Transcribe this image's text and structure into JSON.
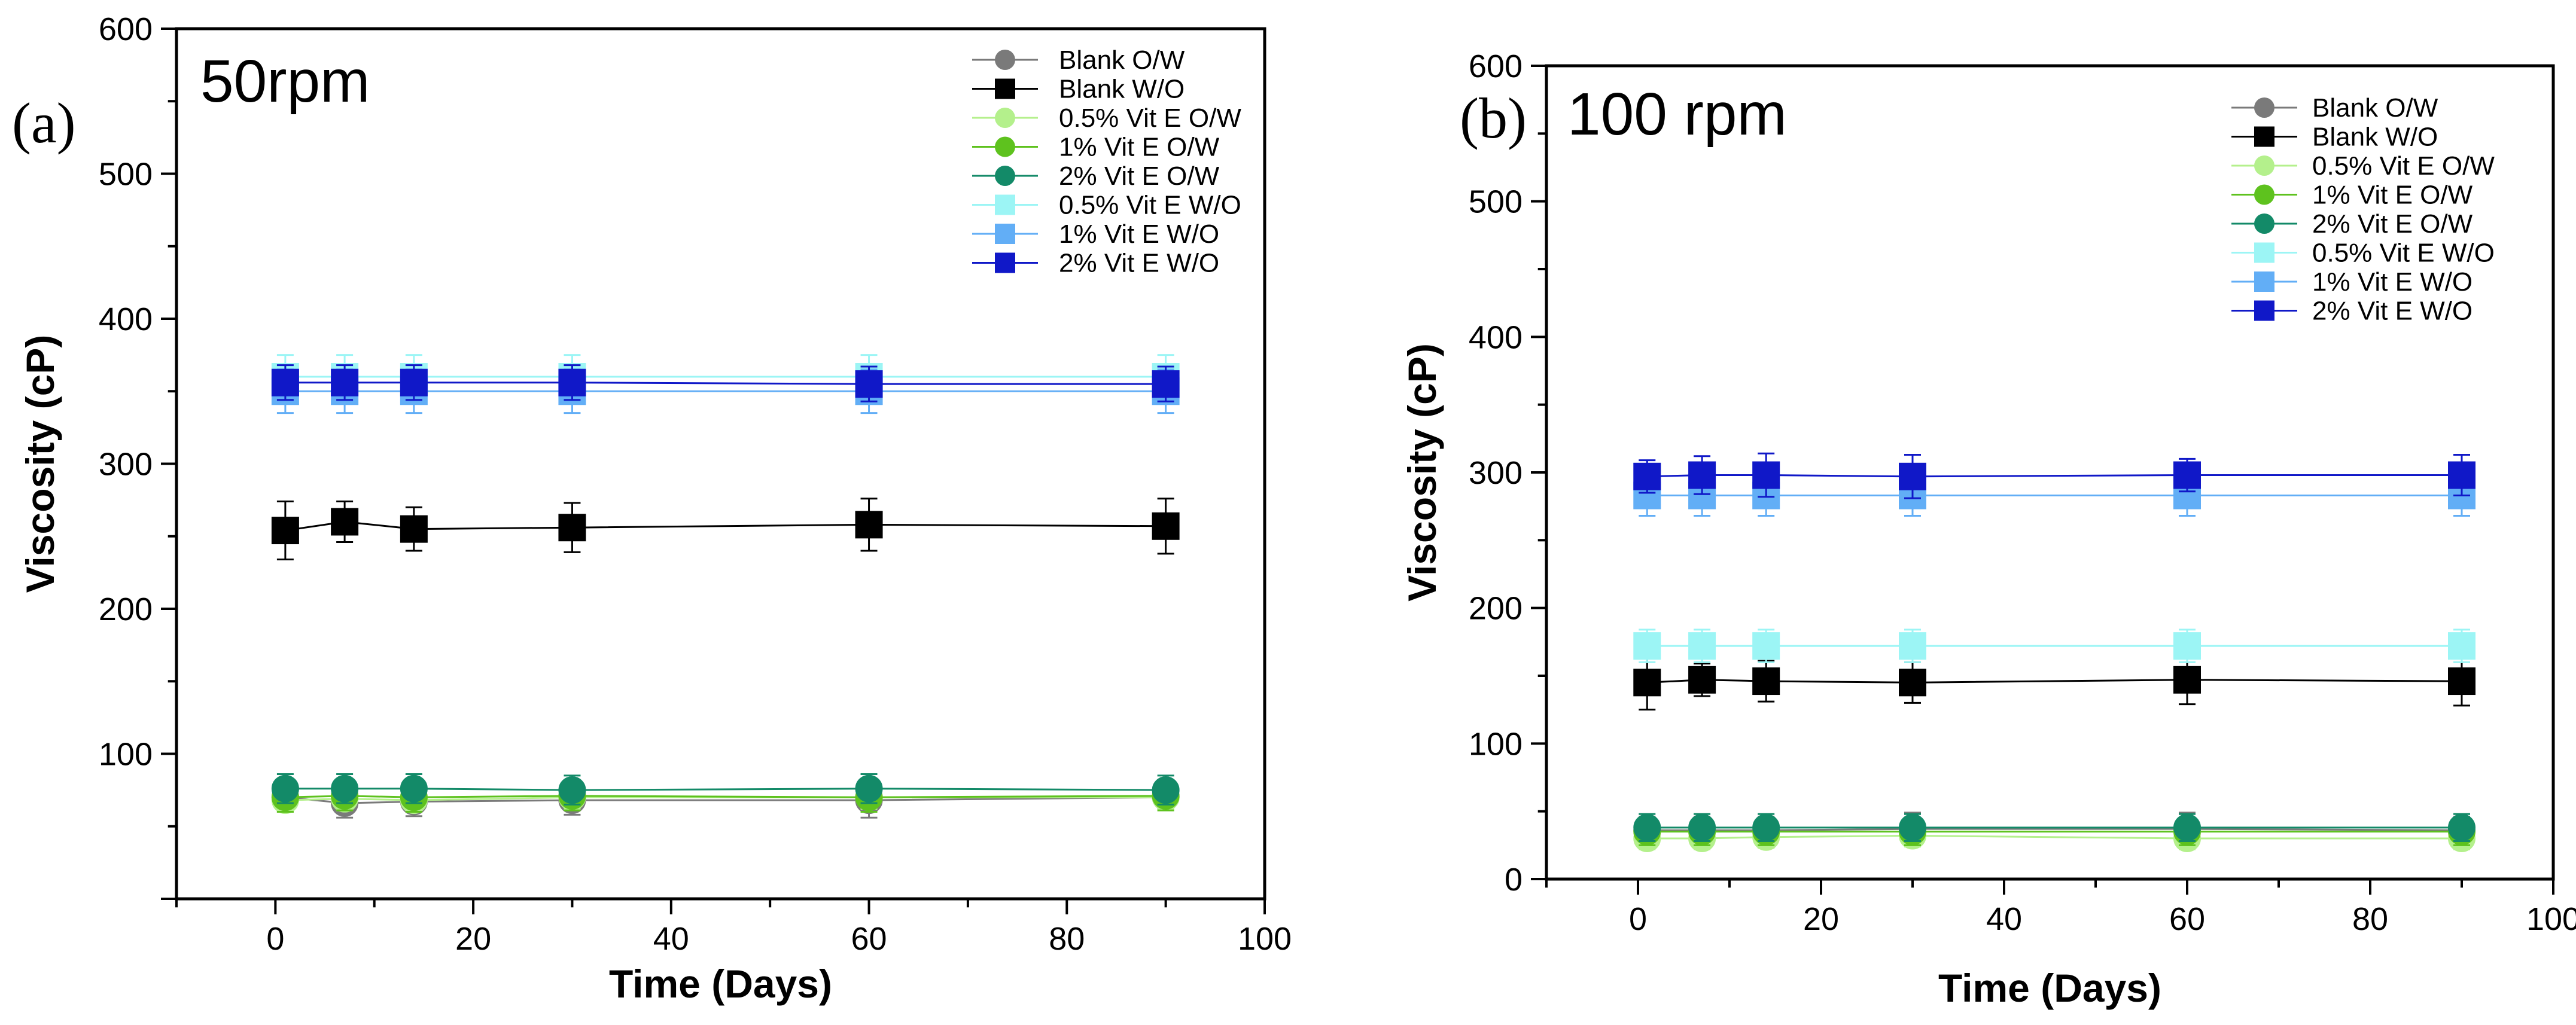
{
  "colors": {
    "Blank O/W": "#7a7a7a",
    "Blank W/O": "#000000",
    "0.5% Vit E O/W": "#b4f08c",
    "1% Vit E O/W": "#5ec21e",
    "2% Vit E O/W": "#138a68",
    "0.5% Vit E W/O": "#9cf5f5",
    "1% Vit E W/O": "#62aef6",
    "2% Vit E W/O": "#1018c8"
  },
  "markers": {
    "Blank O/W": "circle",
    "Blank W/O": "square",
    "0.5% Vit E O/W": "circle",
    "1% Vit E O/W": "circle",
    "2% Vit E O/W": "circle",
    "0.5% Vit E W/O": "square",
    "1% Vit E W/O": "square",
    "2% Vit E W/O": "square"
  },
  "chart_data": [
    {
      "type": "line",
      "panel_label": "(a)",
      "title": "50rpm",
      "xlabel": "Time (Days)",
      "ylabel": "Viscosity (cP)",
      "xlim": [
        -10,
        100
      ],
      "ylim": [
        0,
        600
      ],
      "xticks": [
        0,
        20,
        40,
        60,
        80,
        100
      ],
      "yticks": [
        100,
        200,
        300,
        400,
        500,
        600
      ],
      "legend_position": "top-right",
      "x": [
        1,
        7,
        14,
        30,
        60,
        90
      ],
      "series": [
        {
          "name": "Blank O/W",
          "values": [
            70,
            66,
            67,
            68,
            68,
            70
          ],
          "err": [
            10,
            10,
            10,
            10,
            12,
            8
          ]
        },
        {
          "name": "Blank W/O",
          "values": [
            254,
            260,
            255,
            256,
            258,
            257
          ],
          "err": [
            20,
            14,
            15,
            17,
            18,
            19
          ]
        },
        {
          "name": "0.5% Vit E O/W",
          "values": [
            68,
            69,
            68,
            70,
            70,
            70
          ],
          "err": [
            8,
            8,
            8,
            8,
            8,
            8
          ]
        },
        {
          "name": "1% Vit E O/W",
          "values": [
            70,
            71,
            70,
            71,
            70,
            71
          ],
          "err": [
            10,
            10,
            10,
            10,
            10,
            10
          ]
        },
        {
          "name": "2% Vit E O/W",
          "values": [
            76,
            76,
            76,
            75,
            76,
            75
          ],
          "err": [
            10,
            10,
            10,
            10,
            10,
            10
          ]
        },
        {
          "name": "0.5% Vit E W/O",
          "values": [
            360,
            360,
            360,
            360,
            360,
            360
          ],
          "err": [
            15,
            15,
            15,
            15,
            15,
            15
          ]
        },
        {
          "name": "1% Vit E W/O",
          "values": [
            350,
            350,
            350,
            350,
            350,
            350
          ],
          "err": [
            15,
            15,
            15,
            15,
            15,
            15
          ]
        },
        {
          "name": "2% Vit E W/O",
          "values": [
            356,
            356,
            356,
            356,
            355,
            355
          ],
          "err": [
            12,
            12,
            12,
            12,
            12,
            12
          ]
        }
      ]
    },
    {
      "type": "line",
      "panel_label": "(b)",
      "title": "100 rpm",
      "xlabel": "Time (Days)",
      "ylabel": "Viscosity (cP)",
      "xlim": [
        -10,
        100
      ],
      "ylim": [
        0,
        600
      ],
      "xticks": [
        0,
        20,
        40,
        60,
        80,
        100
      ],
      "yticks": [
        0,
        100,
        200,
        300,
        400,
        500,
        600
      ],
      "legend_position": "top-right",
      "x": [
        1,
        7,
        14,
        30,
        60,
        90
      ],
      "series": [
        {
          "name": "Blank O/W",
          "values": [
            36,
            36,
            36,
            37,
            37,
            36
          ],
          "err": [
            10,
            10,
            10,
            12,
            12,
            10
          ]
        },
        {
          "name": "Blank W/O",
          "values": [
            145,
            147,
            146,
            145,
            147,
            146
          ],
          "err": [
            20,
            12,
            15,
            15,
            18,
            18
          ]
        },
        {
          "name": "0.5% Vit E O/W",
          "values": [
            30,
            30,
            31,
            32,
            30,
            30
          ],
          "err": [
            8,
            8,
            8,
            8,
            8,
            8
          ]
        },
        {
          "name": "1% Vit E O/W",
          "values": [
            35,
            35,
            35,
            35,
            35,
            35
          ],
          "err": [
            10,
            10,
            10,
            10,
            10,
            10
          ]
        },
        {
          "name": "2% Vit E O/W",
          "values": [
            38,
            38,
            38,
            38,
            38,
            38
          ],
          "err": [
            10,
            10,
            10,
            10,
            10,
            10
          ]
        },
        {
          "name": "0.5% Vit E W/O",
          "values": [
            172,
            172,
            172,
            172,
            172,
            172
          ],
          "err": [
            12,
            12,
            12,
            12,
            12,
            12
          ]
        },
        {
          "name": "1% Vit E W/O",
          "values": [
            283,
            283,
            283,
            283,
            283,
            283
          ],
          "err": [
            15,
            15,
            15,
            15,
            15,
            15
          ]
        },
        {
          "name": "2% Vit E W/O",
          "values": [
            297,
            298,
            298,
            297,
            298,
            298
          ],
          "err": [
            12,
            14,
            16,
            16,
            12,
            15
          ]
        }
      ]
    }
  ]
}
